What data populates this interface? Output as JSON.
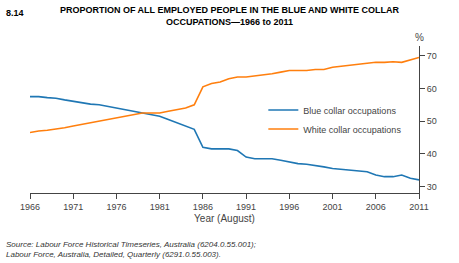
{
  "chart_data": {
    "type": "line",
    "title": "PROPORTION OF ALL EMPLOYED PEOPLE IN THE BLUE AND WHITE COLLAR\nOCCUPATIONS—1966 to 2011",
    "annotations": [
      "8.14",
      "Source: Labour Force Historical Timeseries, Australia (6204.0.55.001);\nLabour Force, Australia, Detailed, Quarterly (6291.0.55.003)."
    ],
    "xlabel": "Year (August)",
    "ylabel": "%",
    "x": [
      1966,
      1967,
      1968,
      1969,
      1970,
      1971,
      1972,
      1973,
      1974,
      1975,
      1976,
      1977,
      1978,
      1979,
      1980,
      1981,
      1982,
      1983,
      1984,
      1985,
      1986,
      1987,
      1988,
      1989,
      1990,
      1991,
      1992,
      1993,
      1994,
      1995,
      1996,
      1997,
      1998,
      1999,
      2000,
      2001,
      2002,
      2003,
      2004,
      2005,
      2006,
      2007,
      2008,
      2009,
      2010,
      2011
    ],
    "series": [
      {
        "name": "Blue collar occupations",
        "values": [
          57.5,
          57.5,
          57.2,
          57.0,
          56.5,
          56.0,
          55.5,
          55.2,
          55.0,
          54.5,
          54.0,
          53.5,
          53.0,
          52.5,
          52.0,
          51.5,
          50.5,
          49.5,
          48.5,
          47.5,
          42.0,
          41.5,
          41.5,
          41.5,
          41.0,
          39.0,
          38.5,
          38.5,
          38.5,
          38.0,
          37.5,
          37.0,
          36.8,
          36.5,
          36.0,
          35.5,
          35.2,
          35.0,
          34.8,
          34.5,
          33.5,
          33.0,
          33.0,
          33.5,
          32.5,
          32.0
        ]
      },
      {
        "name": "White collar occupations",
        "values": [
          46.5,
          47.0,
          47.2,
          47.5,
          48.0,
          48.5,
          49.0,
          49.5,
          50.0,
          50.5,
          51.0,
          51.5,
          52.0,
          52.5,
          52.5,
          52.5,
          53.0,
          53.5,
          54.0,
          55.0,
          60.5,
          61.5,
          62.0,
          63.0,
          63.5,
          63.5,
          63.8,
          64.0,
          64.5,
          65.0,
          65.5,
          65.5,
          65.5,
          65.8,
          65.8,
          66.5,
          66.8,
          67.0,
          67.2,
          67.5,
          68.0,
          68.0,
          68.2,
          68.0,
          68.8,
          69.5
        ]
      }
    ],
    "xlim": [
      1966,
      2011
    ],
    "ylim": [
      28,
      73
    ],
    "xticks": [
      1966,
      1971,
      1976,
      1981,
      1986,
      1991,
      1996,
      2001,
      2006,
      2011
    ],
    "yticks": [
      30,
      40,
      50,
      60,
      70
    ],
    "grid": false,
    "legend": "right"
  }
}
